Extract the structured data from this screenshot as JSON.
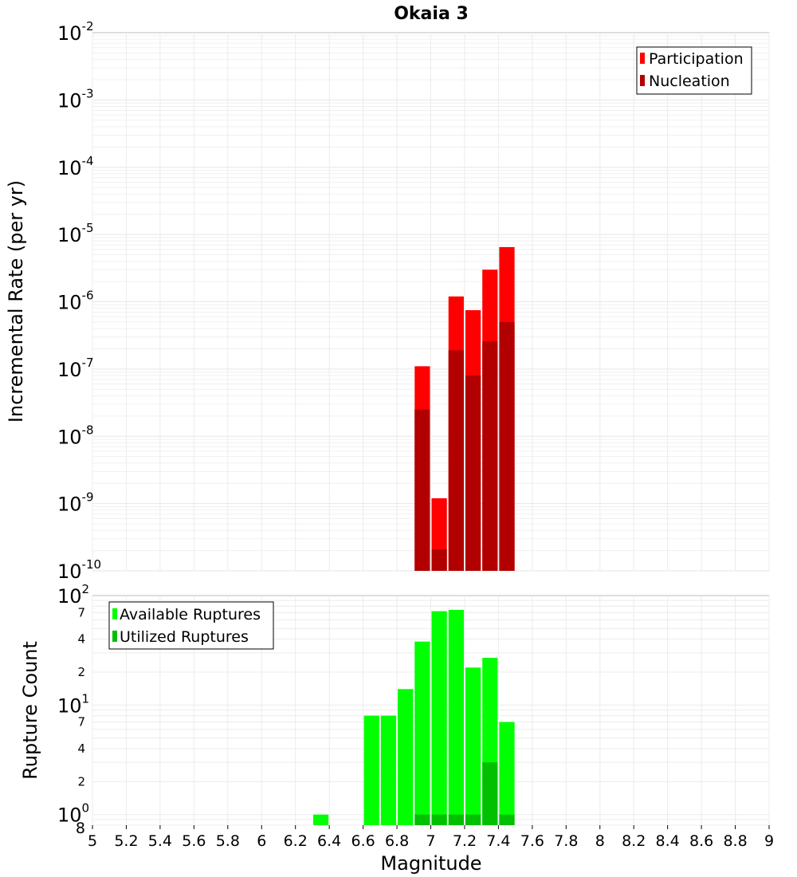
{
  "title": "Okaia 3",
  "chart_data": [
    {
      "type": "bar",
      "title": "Okaia 3",
      "ylabel": "Incremental Rate (per yr)",
      "xlabel": "",
      "yscale": "log",
      "ylim": [
        1e-10,
        0.01
      ],
      "xlim": [
        5,
        9
      ],
      "x": [
        6.95,
        7.05,
        7.15,
        7.25,
        7.35,
        7.45
      ],
      "series": [
        {
          "name": "Participation",
          "color": "#ff0000",
          "values": [
            1.1e-07,
            1.2e-09,
            1.2e-06,
            7.5e-07,
            3e-06,
            6.5e-06
          ]
        },
        {
          "name": "Nucleation",
          "color": "#b20000",
          "values": [
            2.5e-08,
            2.1e-10,
            1.9e-07,
            8e-08,
            2.6e-07,
            5e-07
          ]
        }
      ],
      "y_tick_labels": [
        {
          "base": "10",
          "exp": "-2"
        },
        {
          "base": "10",
          "exp": "-3"
        },
        {
          "base": "10",
          "exp": "-4"
        },
        {
          "base": "10",
          "exp": "-5"
        },
        {
          "base": "10",
          "exp": "-6"
        },
        {
          "base": "10",
          "exp": "-7"
        },
        {
          "base": "10",
          "exp": "-8"
        },
        {
          "base": "10",
          "exp": "-9"
        },
        {
          "base": "10",
          "exp": "-10"
        }
      ],
      "legend": {
        "position": "top-right",
        "entries": [
          "Participation",
          "Nucleation"
        ]
      },
      "grid": true
    },
    {
      "type": "bar",
      "title": "",
      "ylabel": "Rupture Count",
      "xlabel": "Magnitude",
      "yscale": "log",
      "ylim": [
        0.8,
        100
      ],
      "xlim": [
        5,
        9
      ],
      "x": [
        6.35,
        6.65,
        6.75,
        6.85,
        6.95,
        7.05,
        7.15,
        7.25,
        7.35,
        7.45
      ],
      "series": [
        {
          "name": "Available Ruptures",
          "color": "#00ff00",
          "values": [
            1,
            8,
            8,
            14,
            38,
            72,
            74,
            22,
            27,
            7
          ]
        },
        {
          "name": "Utilized Ruptures",
          "color": "#00c000",
          "values": [
            0,
            0,
            0,
            0,
            1,
            1,
            1,
            1,
            3,
            1
          ]
        }
      ],
      "y_tick_labels": [
        {
          "base": "10",
          "exp": "2"
        },
        {
          "base": "",
          "exp": "7"
        },
        {
          "base": "",
          "exp": "4"
        },
        {
          "base": "",
          "exp": "2"
        },
        {
          "base": "10",
          "exp": "1"
        },
        {
          "base": "",
          "exp": "7"
        },
        {
          "base": "",
          "exp": "4"
        },
        {
          "base": "",
          "exp": "2"
        },
        {
          "base": "10",
          "exp": "0"
        },
        {
          "base": "",
          "exp": "8"
        }
      ],
      "x_tick_labels": [
        "5",
        "5.2",
        "5.4",
        "5.6",
        "5.8",
        "6",
        "6.2",
        "6.4",
        "6.6",
        "6.8",
        "7",
        "7.2",
        "7.4",
        "7.6",
        "7.8",
        "8",
        "8.2",
        "8.4",
        "8.6",
        "8.8",
        "9"
      ],
      "legend": {
        "position": "top-left",
        "entries": [
          "Available Ruptures",
          "Utilized Ruptures"
        ]
      },
      "grid": true
    }
  ]
}
